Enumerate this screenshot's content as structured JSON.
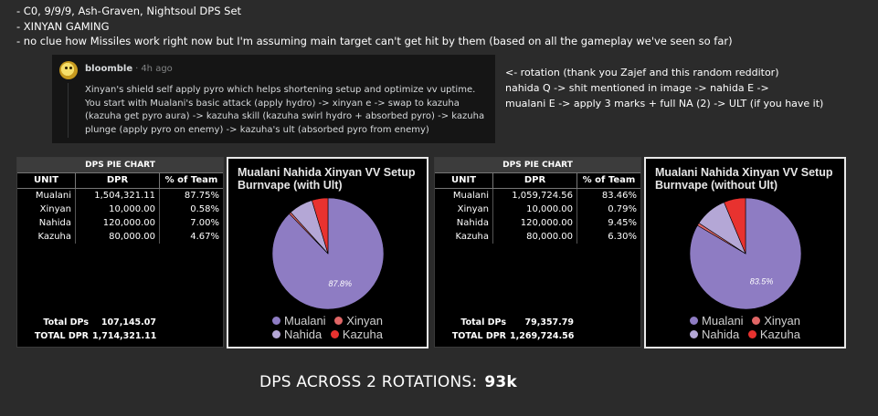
{
  "notes": [
    "- C0, 9/9/9, Ash-Graven, Nightsoul DPS Set",
    "- XINYAN GAMING",
    "- no clue how Missiles work right now but I'm assuming main target can't get hit by them (based on all the gameplay we've seen so far)"
  ],
  "reddit": {
    "author": "bloomble",
    "separator": "·",
    "time": "4h ago",
    "text": "Xinyan's shield self apply pyro which helps shortening setup and optimize vv uptime. You start with Mualani's basic attack (apply hydro) -> xinyan e -> swap to kazuha (kazuha get pyro aura) -> kazuha skill (kazuha swirl hydro + absorbed pyro) -> kazuha plunge (apply pyro on enemy) -> kazuha's ult (absorbed pyro from enemy)"
  },
  "rotation": [
    "<- rotation (thank you Zajef and this random redditor)",
    "nahida Q -> shit mentioned in image -> nahida E ->",
    "mualani E -> apply 3 marks + full NA (2) -> ULT (if you have it)"
  ],
  "colors": {
    "mualani": "#8e7cc3",
    "xinyan": "#e06666",
    "nahida": "#b4a7d6",
    "kazuha": "#e8322f"
  },
  "tables": [
    {
      "title": "DPS PIE CHART",
      "headers": [
        "UNIT",
        "DPR",
        "% of Team"
      ],
      "rows": [
        [
          "Mualani",
          "1,504,321.11",
          "87.75%"
        ],
        [
          "Xinyan",
          "10,000.00",
          "0.58%"
        ],
        [
          "Nahida",
          "120,000.00",
          "7.00%"
        ],
        [
          "Kazuha",
          "80,000.00",
          "4.67%"
        ]
      ],
      "totals": [
        [
          "Total DPs",
          "107,145.07"
        ],
        [
          "TOTAL DPR",
          "1,714,321.11"
        ]
      ]
    },
    {
      "title": "DPS PIE CHART",
      "headers": [
        "UNIT",
        "DPR",
        "% of Team"
      ],
      "rows": [
        [
          "Mualani",
          "1,059,724.56",
          "83.46%"
        ],
        [
          "Xinyan",
          "10,000.00",
          "0.79%"
        ],
        [
          "Nahida",
          "120,000.00",
          "9.45%"
        ],
        [
          "Kazuha",
          "80,000.00",
          "6.30%"
        ]
      ],
      "totals": [
        [
          "Total DPs",
          "79,357.79"
        ],
        [
          "TOTAL DPR",
          "1,269,724.56"
        ]
      ]
    }
  ],
  "chart_data": [
    {
      "type": "pie",
      "title": "Mualani Nahida Xinyan VV Setup Burnvape (with Ult)",
      "categories": [
        "Mualani",
        "Xinyan",
        "Nahida",
        "Kazuha"
      ],
      "values": [
        1504321.11,
        10000,
        120000,
        80000
      ],
      "slice_label": "87.8%",
      "legend": [
        "Mualani",
        "Xinyan",
        "Nahida",
        "Kazuha"
      ],
      "legend_placement": "bottom"
    },
    {
      "type": "pie",
      "title": "Mualani Nahida Xinyan VV Setup Burnvape (without Ult)",
      "categories": [
        "Mualani",
        "Xinyan",
        "Nahida",
        "Kazuha"
      ],
      "values": [
        1059724.56,
        10000,
        120000,
        80000
      ],
      "slice_label": "83.5%",
      "legend": [
        "Mualani",
        "Xinyan",
        "Nahida",
        "Kazuha"
      ],
      "legend_placement": "bottom"
    }
  ],
  "footer": {
    "label": "DPS ACROSS 2 ROTATIONS:",
    "value": "93k"
  }
}
